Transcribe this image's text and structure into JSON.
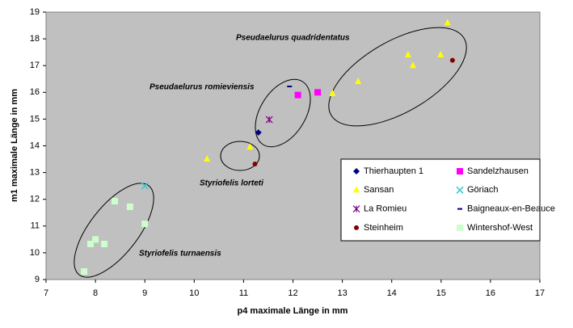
{
  "chart_data": {
    "type": "scatter",
    "x_label": "p4 maximale Länge in mm",
    "y_label": "m1 maximale Länge in mm",
    "annotations": [
      "Pseudaelurus quadridentatus",
      "Pseudaelurus romieviensis",
      "Styriofelis lorteti",
      "Styriofelis turnaensis"
    ],
    "xlim": [
      7,
      17
    ],
    "xticks": [
      7,
      8,
      9,
      10,
      11,
      12,
      13,
      14,
      15,
      16,
      17
    ],
    "ylim": [
      9,
      19
    ],
    "yticks": [
      9,
      10,
      11,
      12,
      13,
      14,
      15,
      16,
      17,
      18,
      19
    ],
    "grid": false,
    "background": "#c0c0c0",
    "legend": "lower right",
    "series": [
      {
        "name": "Thierhaupten 1",
        "color": "#000080",
        "marker": "diamond",
        "x": [
          11.3
        ],
        "values": [
          14.5
        ]
      },
      {
        "name": "Sandelzhausen",
        "color": "#ff00ff",
        "marker": "square",
        "x": [
          12.1,
          12.5
        ],
        "values": [
          15.9,
          16.0
        ]
      },
      {
        "name": "Sansan",
        "color": "#ffff00",
        "marker": "triangle",
        "x": [
          10.26,
          11.13,
          12.8,
          13.32,
          14.33,
          14.43,
          14.99,
          15.13
        ],
        "values": [
          13.5,
          13.95,
          15.95,
          16.4,
          17.4,
          17.0,
          17.4,
          18.6
        ]
      },
      {
        "name": "Göriach",
        "color": "#33cccc",
        "marker": "x",
        "x": [
          9.0
        ],
        "values": [
          12.5
        ]
      },
      {
        "name": "La Romieu",
        "color": "#800080",
        "marker": "star",
        "x": [
          11.52
        ],
        "values": [
          14.98
        ]
      },
      {
        "name": "Baigneaux-en-Beauce",
        "color": "#000080",
        "marker": "dash",
        "x": [
          11.93
        ],
        "values": [
          16.22
        ]
      },
      {
        "name": "Steinheim",
        "color": "#800000",
        "marker": "circle",
        "x": [
          11.23,
          15.23
        ],
        "values": [
          13.32,
          17.2
        ]
      },
      {
        "name": "Wintershof-West",
        "color": "#ccffcc",
        "marker": "square",
        "x": [
          8.39,
          8.7,
          9.0,
          7.9,
          8.0,
          8.18,
          7.77
        ],
        "values": [
          11.93,
          11.72,
          11.08,
          10.33,
          10.5,
          10.33,
          9.3
        ]
      }
    ]
  }
}
